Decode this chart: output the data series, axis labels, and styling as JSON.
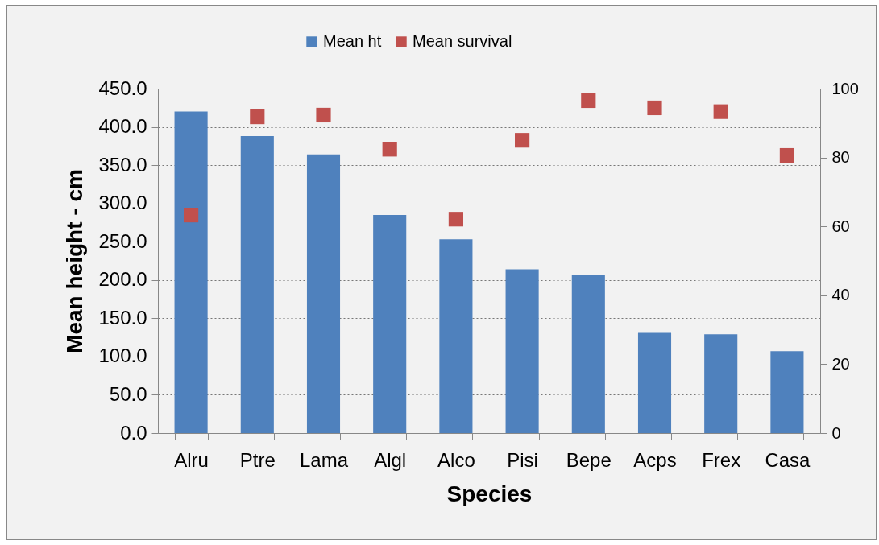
{
  "chart_data": {
    "type": "bar",
    "xlabel": "Species",
    "ylabel": "Mean height - cm",
    "categories": [
      "Alru",
      "Ptre",
      "Lama",
      "Algl",
      "Alco",
      "Pisi",
      "Bepe",
      "Acps",
      "Frex",
      "Casa"
    ],
    "series": [
      {
        "name": "Mean ht",
        "color": "#4f81bd",
        "values": [
          420,
          388,
          364,
          285,
          253,
          214,
          207,
          131,
          129,
          107
        ]
      },
      {
        "name": "Mean survival",
        "type": "scatter",
        "axis": "y2",
        "color": "#c0504d",
        "values": [
          63.3,
          91.8,
          92.3,
          82.4,
          62.1,
          85.0,
          96.5,
          94.4,
          93.3,
          80.6
        ]
      }
    ],
    "ylim": [
      0,
      450
    ],
    "yticks": [
      {
        "value": 0,
        "label": "0.0"
      },
      {
        "value": 50,
        "label": "50.0"
      },
      {
        "value": 100,
        "label": "100.0"
      },
      {
        "value": 150,
        "label": "150.0"
      },
      {
        "value": 200,
        "label": "200.0"
      },
      {
        "value": 250,
        "label": "250.0"
      },
      {
        "value": 300,
        "label": "300.0"
      },
      {
        "value": 350,
        "label": "350.0"
      },
      {
        "value": 400,
        "label": "400.0"
      },
      {
        "value": 450,
        "label": "450.0"
      }
    ],
    "y2lim": [
      0,
      100
    ],
    "y2ticks": [
      0,
      20,
      40,
      60,
      80,
      100
    ],
    "grid": "y",
    "legend": "top",
    "marker": "square"
  }
}
